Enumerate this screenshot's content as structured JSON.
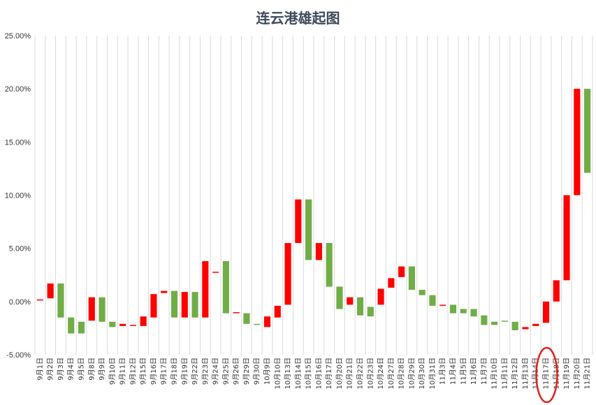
{
  "chart_data": {
    "type": "candlestick",
    "title": "连云港雄起图",
    "xlabel": "",
    "ylabel": "",
    "ylim": [
      -5,
      25
    ],
    "yticks": [
      "-5.00%",
      "0.00%",
      "5.00%",
      "10.00%",
      "15.00%",
      "20.00%",
      "25.00%"
    ],
    "ytick_values": [
      -5,
      0,
      5,
      10,
      15,
      20,
      25
    ],
    "grid": "vertical",
    "colors": {
      "up": "#ff0000",
      "down": "#70ad47",
      "highlight": "#e0201b",
      "grid": "#d9d9d9"
    },
    "annotation": {
      "type": "ellipse",
      "target": "11月17日",
      "color": "#e0201b"
    },
    "categories": [
      "9月1日",
      "9月2日",
      "9月3日",
      "9月4日",
      "9月5日",
      "9月8日",
      "9月9日",
      "9月10日",
      "9月11日",
      "9月12日",
      "9月15日",
      "9月16日",
      "9月17日",
      "9月18日",
      "9月19日",
      "9月22日",
      "9月23日",
      "9月24日",
      "9月25日",
      "9月26日",
      "9月29日",
      "9月30日",
      "10月9日",
      "10月10日",
      "10月13日",
      "10月14日",
      "10月15日",
      "10月16日",
      "10月17日",
      "10月20日",
      "10月21日",
      "10月22日",
      "10月23日",
      "10月24日",
      "10月27日",
      "10月28日",
      "10月29日",
      "10月30日",
      "10月31日",
      "11月3日",
      "11月4日",
      "11月5日",
      "11月6日",
      "11月7日",
      "11月10日",
      "11月11日",
      "11月12日",
      "11月13日",
      "11月14日",
      "11月17日",
      "11月18日",
      "11月19日",
      "11月20日",
      "11月21日"
    ],
    "series": [
      {
        "open": [
          0.1,
          0.3,
          1.7,
          -1.5,
          -1.9,
          -1.8,
          0.4,
          -1.9,
          -2.3,
          -2.2,
          -2.3,
          -1.5,
          0.8,
          1.0,
          -1.5,
          0.9,
          -1.5,
          2.8,
          3.8,
          -1.0,
          -1.1,
          -2.1,
          -2.4,
          -1.5,
          -0.3,
          5.5,
          9.6,
          3.9,
          5.5,
          1.4,
          -0.3,
          0.4,
          -0.5,
          -0.3,
          1.3,
          2.3,
          3.3,
          1.1,
          0.6,
          -0.4,
          -0.3,
          -0.7,
          -0.7,
          -1.3,
          -1.9,
          -1.8,
          -1.9,
          -2.6,
          -2.3,
          -2.0,
          0.0,
          2.0,
          10.0,
          20.0
        ],
        "close": [
          0.2,
          1.7,
          -1.5,
          -3.0,
          -3.0,
          0.4,
          -1.9,
          -2.4,
          -2.1,
          -2.2,
          -1.4,
          0.7,
          1.0,
          -1.5,
          0.9,
          -1.5,
          3.8,
          2.8,
          -1.1,
          -1.0,
          -2.1,
          -2.2,
          -1.4,
          -0.4,
          5.5,
          9.6,
          3.9,
          5.5,
          1.4,
          -0.7,
          0.4,
          -1.3,
          -1.4,
          1.2,
          2.2,
          3.3,
          1.1,
          0.6,
          -0.4,
          -0.3,
          -1.1,
          -1.1,
          -1.4,
          -2.2,
          -2.2,
          -1.9,
          -2.7,
          -2.4,
          -2.1,
          0.0,
          2.0,
          10.0,
          20.0,
          12.1
        ]
      }
    ]
  }
}
